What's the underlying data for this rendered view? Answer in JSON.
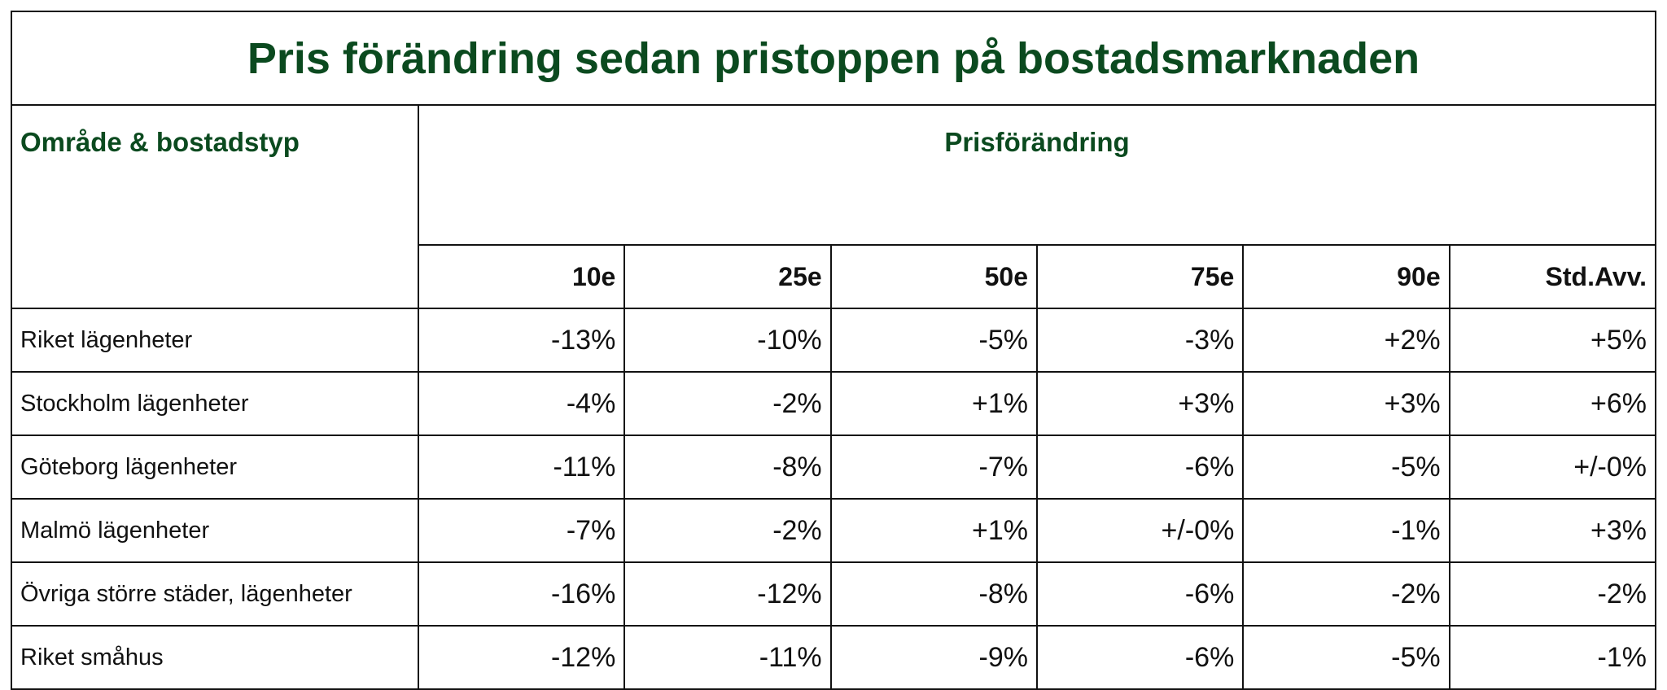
{
  "title": "Pris förändring sedan pristoppen på bostadsmarknaden",
  "header": {
    "row_label": "Område & bostadstyp",
    "group": "Prisförändring",
    "columns": [
      "10e",
      "25e",
      "50e",
      "75e",
      "90e",
      "Std.Avv."
    ]
  },
  "table": {
    "rows": [
      [
        "Riket lägenheter",
        "-13%",
        "-10%",
        "-5%",
        "-3%",
        "+2%",
        "+5%"
      ],
      [
        "Stockholm lägenheter",
        "-4%",
        "-2%",
        "+1%",
        "+3%",
        "+3%",
        "+6%"
      ],
      [
        "Göteborg lägenheter",
        "-11%",
        "-8%",
        "-7%",
        "-6%",
        "-5%",
        "+/-0%"
      ],
      [
        "Malmö lägenheter",
        "-7%",
        "-2%",
        "+1%",
        "+/-0%",
        "-1%",
        "+3%"
      ],
      [
        "Övriga större städer, lägenheter",
        "-16%",
        "-12%",
        "-8%",
        "-6%",
        "-2%",
        "-2%"
      ],
      [
        "Riket småhus",
        "-12%",
        "-11%",
        "-9%",
        "-6%",
        "-5%",
        "-1%"
      ]
    ]
  }
}
